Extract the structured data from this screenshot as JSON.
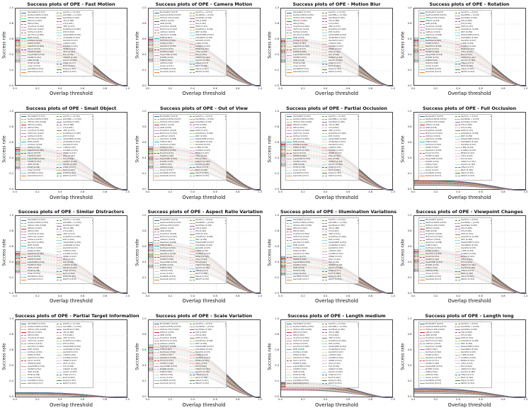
{
  "figure": {
    "xlabel": "Overlap threshold",
    "ylabel": "Success rate",
    "x_ticks": [
      "0.0",
      "0.2",
      "0.4",
      "0.6",
      "0.8",
      "1.0"
    ],
    "y_ticks": [
      "0.0",
      "0.2",
      "0.4",
      "0.6",
      "0.8",
      "1.0"
    ],
    "grid_color": "#cccccc",
    "spine_color": "#444444",
    "highlight_color": "#d62728"
  },
  "plots": [
    {
      "title": "Success plots of OPE - Fast Motion",
      "peak": 0.62
    },
    {
      "title": "Success plots of OPE - Camera Motion",
      "peak": 0.63
    },
    {
      "title": "Success plots of OPE - Motion Blur",
      "peak": 0.61
    },
    {
      "title": "Success plots of OPE - Rotation",
      "peak": 0.62
    },
    {
      "title": "Success plots of OPE - Small Object",
      "peak": 0.55
    },
    {
      "title": "Success plots of OPE - Out of View",
      "peak": 0.56
    },
    {
      "title": "Success plots of OPE - Partial Occlusion",
      "peak": 0.62
    },
    {
      "title": "Success plots of OPE - Full Occlusion",
      "peak": 0.13
    },
    {
      "title": "Success plots of OPE - Similar Distractors",
      "peak": 0.54
    },
    {
      "title": "Success plots of OPE - Aspect Ratio Variation",
      "peak": 0.66
    },
    {
      "title": "Success plots of OPE - Illumination Variations",
      "peak": 0.48
    },
    {
      "title": "Success plots of OPE - Viewpoint Changes",
      "peak": 0.57
    },
    {
      "title": "Success plots of OPE - Partial Target Information",
      "peak": 0.07
    },
    {
      "title": "Success plots of OPE - Scale Variation",
      "peak": 0.68
    },
    {
      "title": "Success plots of OPE - Length medium",
      "peak": 0.2
    },
    {
      "title": "Success plots of OPE - Length long",
      "peak": 0.12
    }
  ],
  "trackers": [
    {
      "name": "MambaNUT",
      "score": 0.672,
      "color": "#1f77b4",
      "dash": "solid",
      "width": 0.9
    },
    {
      "name": "SeqTrack-B256",
      "score": 0.655,
      "color": "#ff7f0e",
      "dash": "dashed",
      "width": 0.7
    },
    {
      "name": "OSTrack-256",
      "score": 0.648,
      "color": "#2ca02c",
      "dash": "dotted",
      "width": 0.7
    },
    {
      "name": "ARTrack",
      "score": 0.642,
      "color": "#d62728",
      "dash": "solid",
      "width": 1.3
    },
    {
      "name": "GRM",
      "score": 0.635,
      "color": "#9467bd",
      "dash": "dashed",
      "width": 0.7
    },
    {
      "name": "DropTrack",
      "score": 0.629,
      "color": "#8c564b",
      "dash": "dotted",
      "width": 0.7
    },
    {
      "name": "MixFormer",
      "score": 0.622,
      "color": "#e377c2",
      "dash": "solid",
      "width": 0.7
    },
    {
      "name": "AiATrack",
      "score": 0.615,
      "color": "#7f7f7f",
      "dash": "dashed",
      "width": 0.7
    },
    {
      "name": "SwinTrack",
      "score": 0.608,
      "color": "#bcbd22",
      "dash": "dotted",
      "width": 0.7
    },
    {
      "name": "ToMP",
      "score": 0.601,
      "color": "#17becf",
      "dash": "solid",
      "width": 0.7
    },
    {
      "name": "SimTrack",
      "score": 0.594,
      "color": "#aec7e8",
      "dash": "dashed",
      "width": 0.7
    },
    {
      "name": "STARK",
      "score": 0.587,
      "color": "#ffbb78",
      "dash": "dotted",
      "width": 0.7
    },
    {
      "name": "KeepTrack",
      "score": 0.58,
      "color": "#98df8a",
      "dash": "solid",
      "width": 0.7
    },
    {
      "name": "TransT",
      "score": 0.573,
      "color": "#d62728",
      "dash": "dashed",
      "width": 1.3
    },
    {
      "name": "TrDiMP",
      "score": 0.566,
      "color": "#c5b0d5",
      "dash": "dotted",
      "width": 0.7
    },
    {
      "name": "SuperDiMP",
      "score": 0.559,
      "color": "#c49c94",
      "dash": "solid",
      "width": 0.7
    },
    {
      "name": "PrDiMP",
      "score": 0.552,
      "color": "#f7b6d2",
      "dash": "dashed",
      "width": 0.7
    },
    {
      "name": "DiMP",
      "score": 0.545,
      "color": "#c7c7c7",
      "dash": "dotted",
      "width": 0.7
    },
    {
      "name": "ATOM",
      "score": 0.538,
      "color": "#dbdb8d",
      "dash": "solid",
      "width": 0.7
    },
    {
      "name": "Ocean",
      "score": 0.531,
      "color": "#9edae5",
      "dash": "dashed",
      "width": 0.7
    },
    {
      "name": "SiamBAN",
      "score": 0.524,
      "color": "#1f77b4",
      "dash": "dotted",
      "width": 0.7
    },
    {
      "name": "SiamCAR",
      "score": 0.517,
      "color": "#ff7f0e",
      "dash": "solid",
      "width": 0.7
    },
    {
      "name": "SiamFC++",
      "score": 0.51,
      "color": "#2ca02c",
      "dash": "dashed",
      "width": 0.7
    },
    {
      "name": "SiamRPN++",
      "score": 0.502,
      "color": "#d62728",
      "dash": "dotted",
      "width": 0.7
    },
    {
      "name": "SiamMask",
      "score": 0.495,
      "color": "#9467bd",
      "dash": "solid",
      "width": 0.7
    },
    {
      "name": "D3S",
      "score": 0.488,
      "color": "#8c564b",
      "dash": "dashed",
      "width": 0.7
    },
    {
      "name": "KYS",
      "score": 0.481,
      "color": "#e377c2",
      "dash": "dotted",
      "width": 0.7
    },
    {
      "name": "LTMU",
      "score": 0.474,
      "color": "#7f7f7f",
      "dash": "solid",
      "width": 0.7
    },
    {
      "name": "GlobalTrack",
      "score": 0.466,
      "color": "#bcbd22",
      "dash": "dashed",
      "width": 0.7
    },
    {
      "name": "SPLT",
      "score": 0.459,
      "color": "#17becf",
      "dash": "dotted",
      "width": 0.7
    },
    {
      "name": "DaSiamRPN",
      "score": 0.452,
      "color": "#aec7e8",
      "dash": "solid",
      "width": 0.7
    },
    {
      "name": "UpdateNet",
      "score": 0.444,
      "color": "#ffbb78",
      "dash": "dashed",
      "width": 0.7
    },
    {
      "name": "SiamDW",
      "score": 0.437,
      "color": "#98df8a",
      "dash": "dotted",
      "width": 0.7
    },
    {
      "name": "C-RPN",
      "score": 0.43,
      "color": "#ff9896",
      "dash": "solid",
      "width": 0.7
    },
    {
      "name": "GradNet",
      "score": 0.422,
      "color": "#c5b0d5",
      "dash": "dashed",
      "width": 0.7
    },
    {
      "name": "MDNet",
      "score": 0.415,
      "color": "#c49c94",
      "dash": "dotted",
      "width": 0.7
    },
    {
      "name": "VITAL",
      "score": 0.407,
      "color": "#f7b6d2",
      "dash": "solid",
      "width": 0.7
    },
    {
      "name": "ECO",
      "score": 0.4,
      "color": "#c7c7c7",
      "dash": "dashed",
      "width": 0.7
    },
    {
      "name": "CSRDCF",
      "score": 0.392,
      "color": "#dbdb8d",
      "dash": "dotted",
      "width": 0.7
    },
    {
      "name": "SiamFC",
      "score": 0.385,
      "color": "#9edae5",
      "dash": "solid",
      "width": 0.7
    },
    {
      "name": "CFNet",
      "score": 0.377,
      "color": "#1f77b4",
      "dash": "dashed",
      "width": 0.7
    },
    {
      "name": "BACF",
      "score": 0.369,
      "color": "#ff7f0e",
      "dash": "dotted",
      "width": 0.7
    },
    {
      "name": "Staple",
      "score": 0.361,
      "color": "#2ca02c",
      "dash": "solid",
      "width": 0.7
    },
    {
      "name": "SRDCF",
      "score": 0.353,
      "color": "#9467bd",
      "dash": "dashed",
      "width": 0.7
    },
    {
      "name": "KCF",
      "score": 0.344,
      "color": "#8c564b",
      "dash": "dotted",
      "width": 0.7
    },
    {
      "name": "TLD",
      "score": 0.335,
      "color": "#e377c2",
      "dash": "solid",
      "width": 0.7
    }
  ],
  "chart_data": [
    {
      "type": "line",
      "title": "Success plots of OPE - Fast Motion",
      "xlabel": "Overlap threshold",
      "ylabel": "Success rate",
      "xlim": [
        0,
        1
      ],
      "ylim": [
        0,
        1
      ],
      "grid": true,
      "legend_position": "upper left",
      "num_series": 46,
      "x": [
        0,
        0.2,
        0.4,
        0.6,
        0.8,
        1.0
      ],
      "top_curve_y": [
        0.62,
        0.61,
        0.55,
        0.39,
        0.14,
        0
      ]
    },
    {
      "type": "line",
      "title": "Success plots of OPE - Camera Motion",
      "xlabel": "Overlap threshold",
      "ylabel": "Success rate",
      "xlim": [
        0,
        1
      ],
      "ylim": [
        0,
        1
      ],
      "grid": true,
      "legend_position": "upper left",
      "num_series": 46,
      "x": [
        0,
        0.2,
        0.4,
        0.6,
        0.8,
        1.0
      ],
      "top_curve_y": [
        0.63,
        0.62,
        0.56,
        0.39,
        0.14,
        0
      ]
    },
    {
      "type": "line",
      "title": "Success plots of OPE - Motion Blur",
      "xlabel": "Overlap threshold",
      "ylabel": "Success rate",
      "xlim": [
        0,
        1
      ],
      "ylim": [
        0,
        1
      ],
      "grid": true,
      "legend_position": "upper left",
      "num_series": 46,
      "x": [
        0,
        0.2,
        0.4,
        0.6,
        0.8,
        1.0
      ],
      "top_curve_y": [
        0.61,
        0.6,
        0.55,
        0.38,
        0.14,
        0
      ]
    },
    {
      "type": "line",
      "title": "Success plots of OPE - Rotation",
      "xlabel": "Overlap threshold",
      "ylabel": "Success rate",
      "xlim": [
        0,
        1
      ],
      "ylim": [
        0,
        1
      ],
      "grid": true,
      "legend_position": "upper left",
      "num_series": 46,
      "x": [
        0,
        0.2,
        0.4,
        0.6,
        0.8,
        1.0
      ],
      "top_curve_y": [
        0.62,
        0.61,
        0.55,
        0.39,
        0.14,
        0
      ]
    },
    {
      "type": "line",
      "title": "Success plots of OPE - Small Object",
      "xlabel": "Overlap threshold",
      "ylabel": "Success rate",
      "xlim": [
        0,
        1
      ],
      "ylim": [
        0,
        1
      ],
      "grid": true,
      "legend_position": "upper left",
      "num_series": 46,
      "x": [
        0,
        0.2,
        0.4,
        0.6,
        0.8,
        1.0
      ],
      "top_curve_y": [
        0.55,
        0.54,
        0.49,
        0.34,
        0.12,
        0
      ]
    },
    {
      "type": "line",
      "title": "Success plots of OPE - Out of View",
      "xlabel": "Overlap threshold",
      "ylabel": "Success rate",
      "xlim": [
        0,
        1
      ],
      "ylim": [
        0,
        1
      ],
      "grid": true,
      "legend_position": "upper left",
      "num_series": 46,
      "x": [
        0,
        0.2,
        0.4,
        0.6,
        0.8,
        1.0
      ],
      "top_curve_y": [
        0.56,
        0.55,
        0.5,
        0.35,
        0.13,
        0
      ]
    },
    {
      "type": "line",
      "title": "Success plots of OPE - Partial Occlusion",
      "xlabel": "Overlap threshold",
      "ylabel": "Success rate",
      "xlim": [
        0,
        1
      ],
      "ylim": [
        0,
        1
      ],
      "grid": true,
      "legend_position": "upper left",
      "num_series": 46,
      "x": [
        0,
        0.2,
        0.4,
        0.6,
        0.8,
        1.0
      ],
      "top_curve_y": [
        0.62,
        0.61,
        0.55,
        0.39,
        0.14,
        0
      ]
    },
    {
      "type": "line",
      "title": "Success plots of OPE - Full Occlusion",
      "xlabel": "Overlap threshold",
      "ylabel": "Success rate",
      "xlim": [
        0,
        1
      ],
      "ylim": [
        0,
        1
      ],
      "grid": true,
      "legend_position": "upper left",
      "num_series": 46,
      "x": [
        0,
        0.2,
        0.4,
        0.6,
        0.8,
        1.0
      ],
      "top_curve_y": [
        0.13,
        0.13,
        0.12,
        0.08,
        0.03,
        0
      ]
    },
    {
      "type": "line",
      "title": "Success plots of OPE - Similar Distractors",
      "xlabel": "Overlap threshold",
      "ylabel": "Success rate",
      "xlim": [
        0,
        1
      ],
      "ylim": [
        0,
        1
      ],
      "grid": true,
      "legend_position": "upper left",
      "num_series": 46,
      "x": [
        0,
        0.2,
        0.4,
        0.6,
        0.8,
        1.0
      ],
      "top_curve_y": [
        0.54,
        0.53,
        0.48,
        0.34,
        0.12,
        0
      ]
    },
    {
      "type": "line",
      "title": "Success plots of OPE - Aspect Ratio Variation",
      "xlabel": "Overlap threshold",
      "ylabel": "Success rate",
      "xlim": [
        0,
        1
      ],
      "ylim": [
        0,
        1
      ],
      "grid": true,
      "legend_position": "upper left",
      "num_series": 46,
      "x": [
        0,
        0.2,
        0.4,
        0.6,
        0.8,
        1.0
      ],
      "top_curve_y": [
        0.66,
        0.65,
        0.59,
        0.41,
        0.15,
        0
      ]
    },
    {
      "type": "line",
      "title": "Success plots of OPE - Illumination Variations",
      "xlabel": "Overlap threshold",
      "ylabel": "Success rate",
      "xlim": [
        0,
        1
      ],
      "ylim": [
        0,
        1
      ],
      "grid": true,
      "legend_position": "upper left",
      "num_series": 46,
      "x": [
        0,
        0.2,
        0.4,
        0.6,
        0.8,
        1.0
      ],
      "top_curve_y": [
        0.48,
        0.48,
        0.43,
        0.3,
        0.11,
        0
      ]
    },
    {
      "type": "line",
      "title": "Success plots of OPE - Viewpoint Changes",
      "xlabel": "Overlap threshold",
      "ylabel": "Success rate",
      "xlim": [
        0,
        1
      ],
      "ylim": [
        0,
        1
      ],
      "grid": true,
      "legend_position": "upper left",
      "num_series": 46,
      "x": [
        0,
        0.2,
        0.4,
        0.6,
        0.8,
        1.0
      ],
      "top_curve_y": [
        0.57,
        0.56,
        0.51,
        0.36,
        0.13,
        0
      ]
    },
    {
      "type": "line",
      "title": "Success plots of OPE - Partial Target Information",
      "xlabel": "Overlap threshold",
      "ylabel": "Success rate",
      "xlim": [
        0,
        1
      ],
      "ylim": [
        0,
        1
      ],
      "grid": true,
      "legend_position": "upper left",
      "num_series": 46,
      "x": [
        0,
        0.2,
        0.4,
        0.6,
        0.8,
        1.0
      ],
      "top_curve_y": [
        0.07,
        0.07,
        0.06,
        0.04,
        0.02,
        0
      ]
    },
    {
      "type": "line",
      "title": "Success plots of OPE - Scale Variation",
      "xlabel": "Overlap threshold",
      "ylabel": "Success rate",
      "xlim": [
        0,
        1
      ],
      "ylim": [
        0,
        1
      ],
      "grid": true,
      "legend_position": "upper left",
      "num_series": 46,
      "x": [
        0,
        0.2,
        0.4,
        0.6,
        0.8,
        1.0
      ],
      "top_curve_y": [
        0.68,
        0.67,
        0.61,
        0.43,
        0.15,
        0
      ]
    },
    {
      "type": "line",
      "title": "Success plots of OPE - Length medium",
      "xlabel": "Overlap threshold",
      "ylabel": "Success rate",
      "xlim": [
        0,
        1
      ],
      "ylim": [
        0,
        1
      ],
      "grid": true,
      "legend_position": "upper left",
      "num_series": 46,
      "x": [
        0,
        0.2,
        0.4,
        0.6,
        0.8,
        1.0
      ],
      "top_curve_y": [
        0.2,
        0.2,
        0.18,
        0.13,
        0.05,
        0
      ]
    },
    {
      "type": "line",
      "title": "Success plots of OPE - Length long",
      "xlabel": "Overlap threshold",
      "ylabel": "Success rate",
      "xlim": [
        0,
        1
      ],
      "ylim": [
        0,
        1
      ],
      "grid": true,
      "legend_position": "upper left",
      "num_series": 46,
      "x": [
        0,
        0.2,
        0.4,
        0.6,
        0.8,
        1.0
      ],
      "top_curve_y": [
        0.12,
        0.12,
        0.11,
        0.08,
        0.03,
        0
      ]
    }
  ]
}
